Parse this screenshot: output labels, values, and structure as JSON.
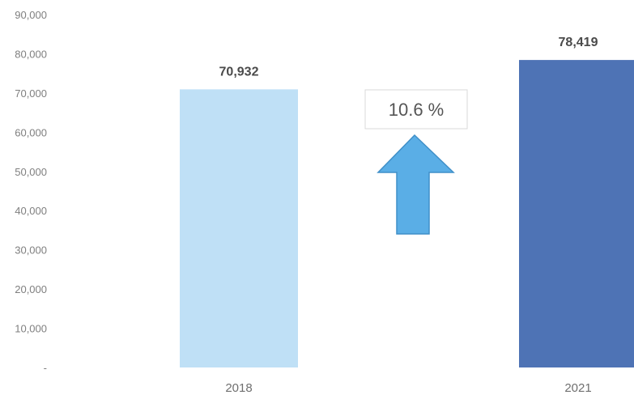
{
  "chart_data": {
    "type": "bar",
    "categories": [
      "2018",
      "2021"
    ],
    "values": [
      70932,
      78419
    ],
    "value_labels": [
      "70,932",
      "78,419"
    ],
    "bar_colors": [
      "#bfe0f6",
      "#4e73b5"
    ],
    "ylim": [
      0,
      90000
    ],
    "yticks": [
      0,
      10000,
      20000,
      30000,
      40000,
      50000,
      60000,
      70000,
      80000,
      90000
    ],
    "ytick_labels": [
      "-",
      "10,000",
      "20,000",
      "30,000",
      "40,000",
      "50,000",
      "60,000",
      "70,000",
      "80,000",
      "90,000"
    ],
    "grid": false,
    "annotation": {
      "text": "10.6 %",
      "icon": "up-arrow-icon",
      "color": "#5aaee6"
    }
  }
}
